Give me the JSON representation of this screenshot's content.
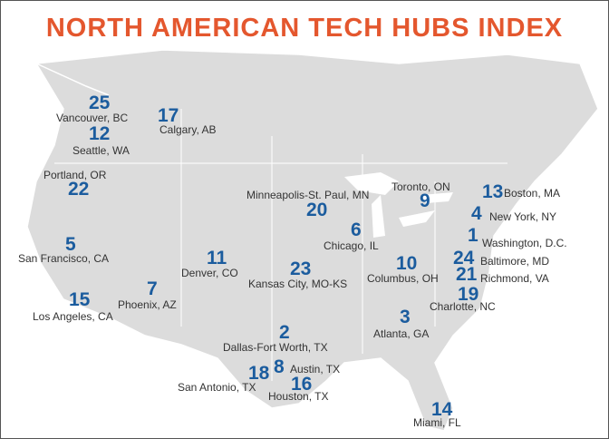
{
  "title": "NORTH AMERICAN TECH HUBS INDEX",
  "cities": [
    {
      "rank": 25,
      "name": "Vancouver, BC"
    },
    {
      "rank": 17,
      "name": "Calgary, AB"
    },
    {
      "rank": 12,
      "name": "Seattle, WA"
    },
    {
      "rank": 22,
      "name": "Portland, OR"
    },
    {
      "rank": 20,
      "name": "Minneapolis-St. Paul, MN"
    },
    {
      "rank": 9,
      "name": "Toronto, ON"
    },
    {
      "rank": 13,
      "name": "Boston, MA"
    },
    {
      "rank": 4,
      "name": "New York, NY"
    },
    {
      "rank": 6,
      "name": "Chicago, IL"
    },
    {
      "rank": 1,
      "name": "Washington, D.C."
    },
    {
      "rank": 5,
      "name": "San Francisco, CA"
    },
    {
      "rank": 11,
      "name": "Denver, CO"
    },
    {
      "rank": 10,
      "name": "Columbus, OH"
    },
    {
      "rank": 24,
      "name": "Baltimore, MD"
    },
    {
      "rank": 23,
      "name": "Kansas City, MO-KS"
    },
    {
      "rank": 21,
      "name": "Richmond, VA"
    },
    {
      "rank": 7,
      "name": "Phoenix, AZ"
    },
    {
      "rank": 15,
      "name": "Los Angeles, CA"
    },
    {
      "rank": 19,
      "name": "Charlotte, NC"
    },
    {
      "rank": 3,
      "name": "Atlanta, GA"
    },
    {
      "rank": 2,
      "name": "Dallas-Fort Worth, TX"
    },
    {
      "rank": 8,
      "name": "Austin, TX"
    },
    {
      "rank": 18,
      "name": "San Antonio, TX"
    },
    {
      "rank": 16,
      "name": "Houston, TX"
    },
    {
      "rank": 14,
      "name": "Miami, FL"
    }
  ]
}
